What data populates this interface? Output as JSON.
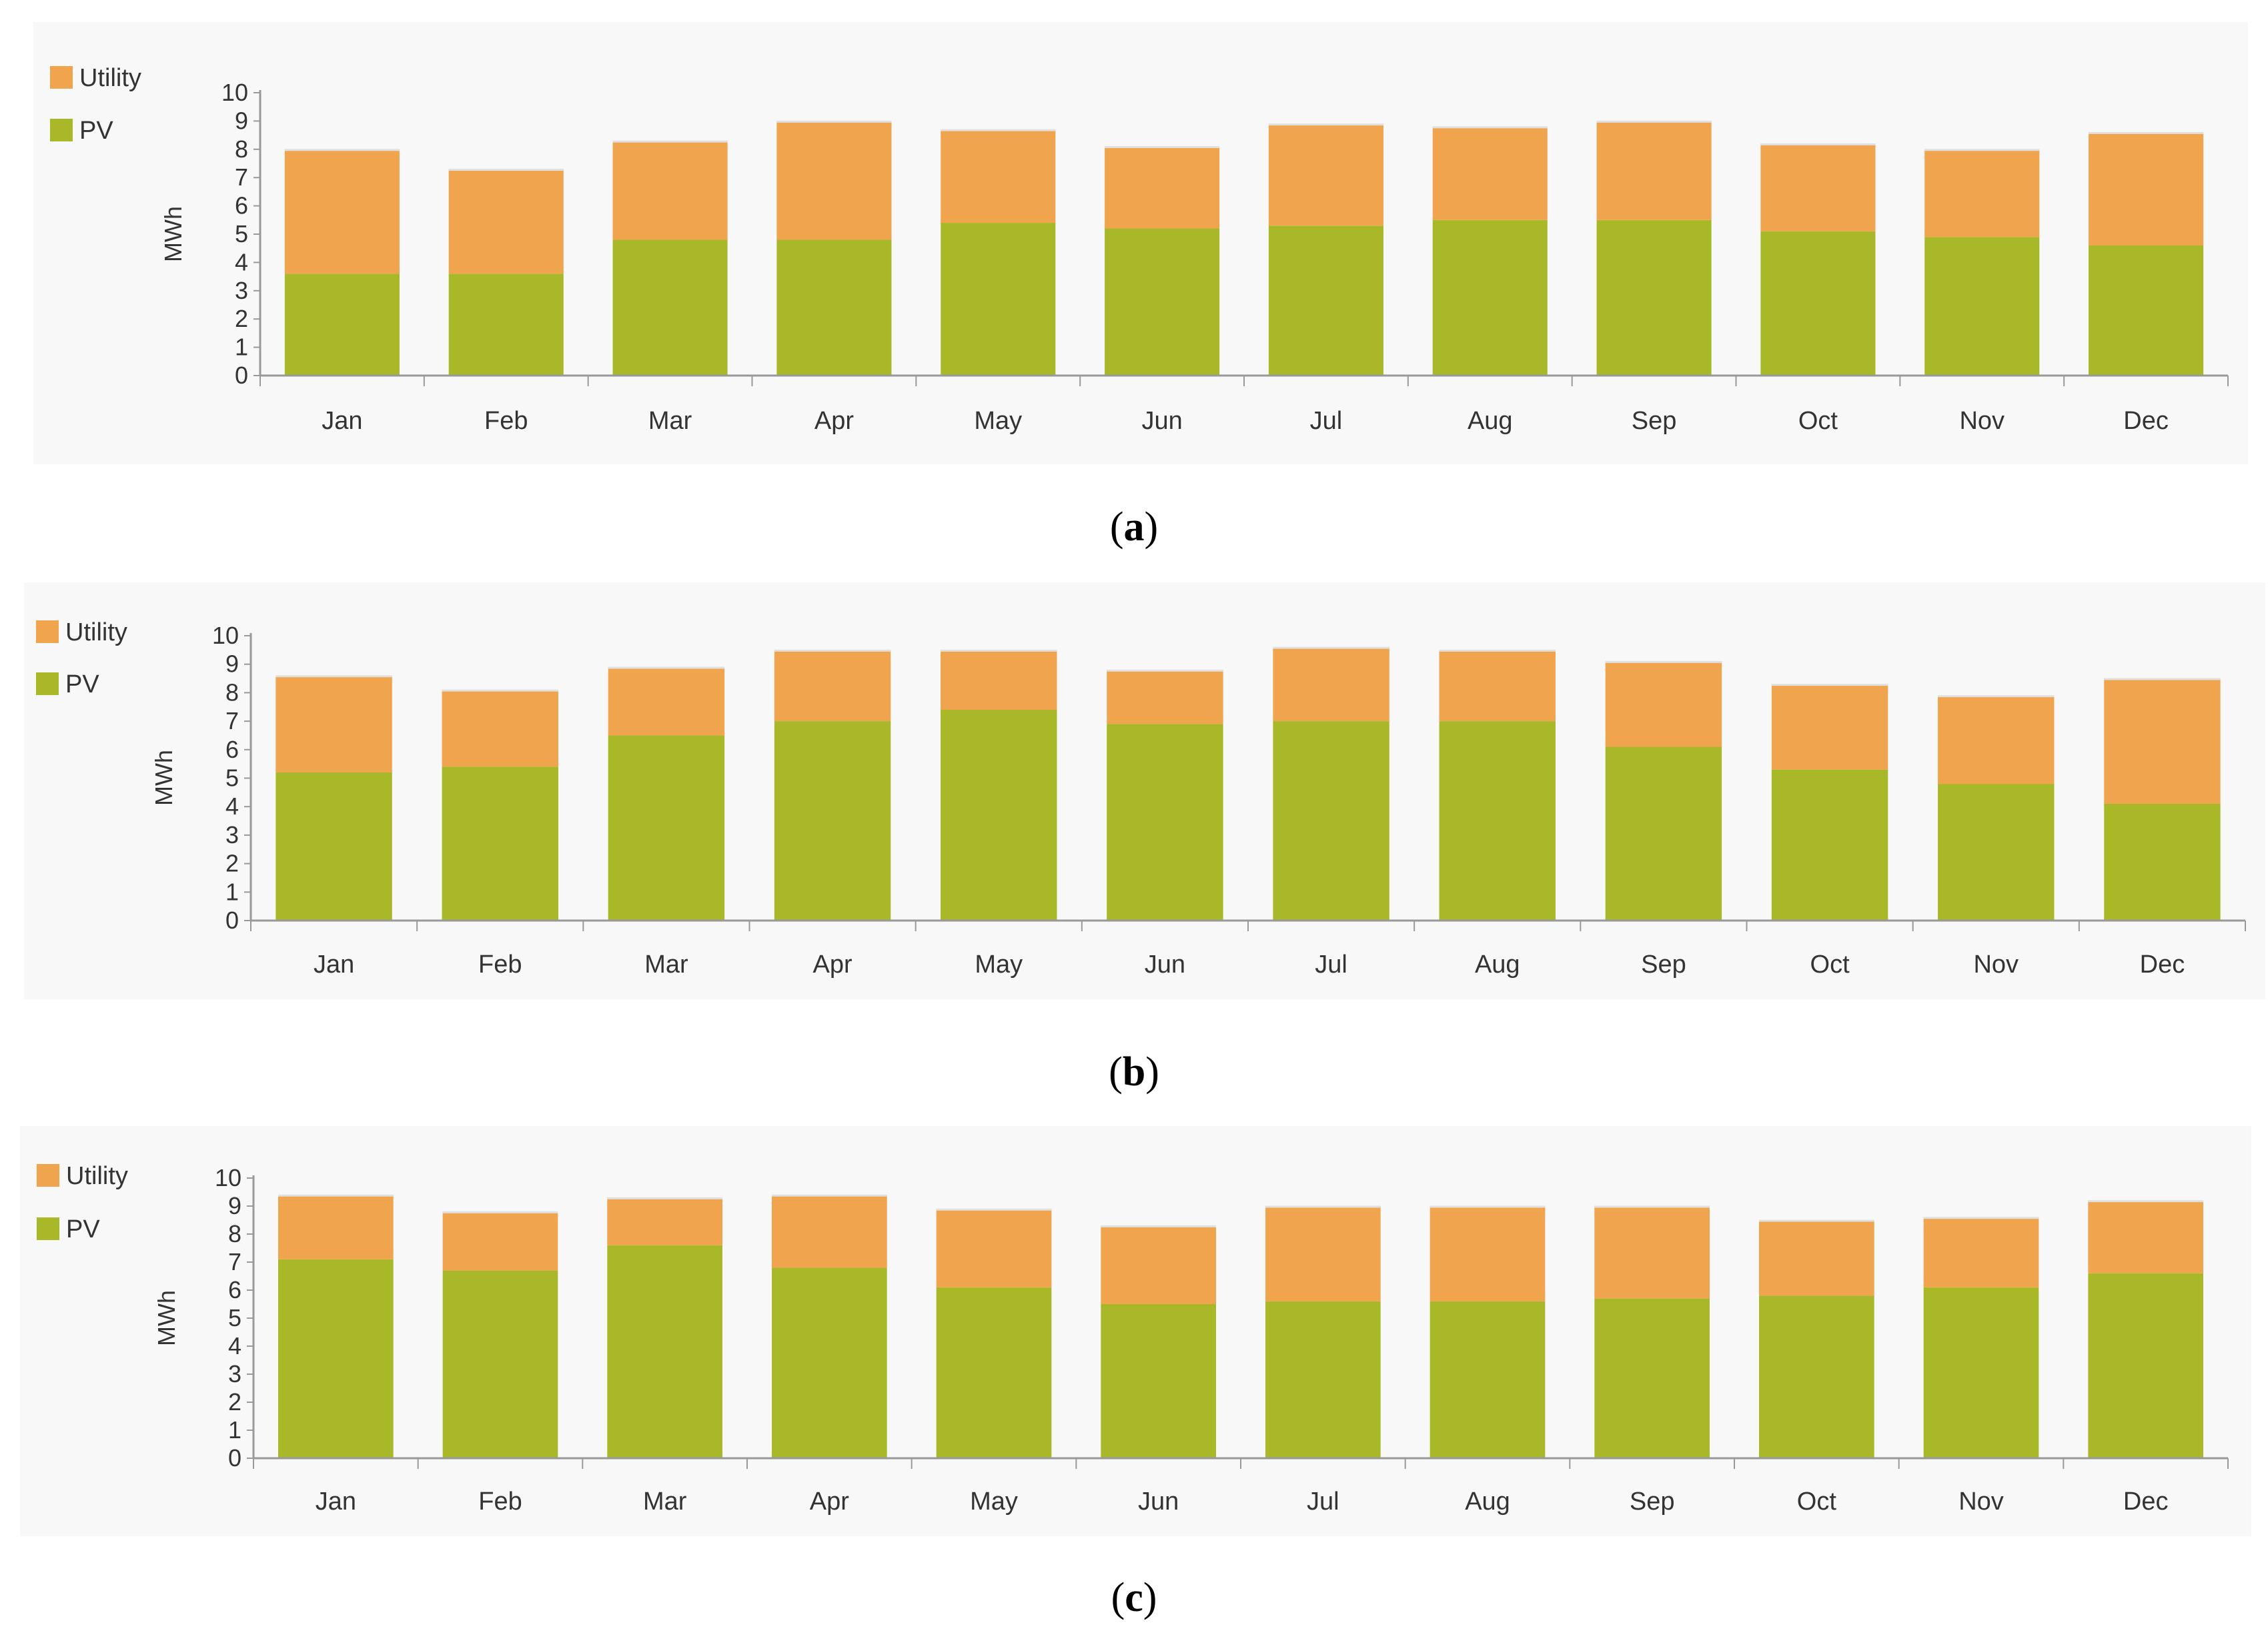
{
  "colors": {
    "utility": "#f0a44e",
    "pv": "#a9b828",
    "axis": "#999999",
    "panel": "#f8f8f8"
  },
  "chart_data": [
    {
      "type": "bar",
      "stacked": true,
      "caption": "a",
      "ylabel": "MWh",
      "ylim": [
        0,
        10
      ],
      "yticks": [
        "0",
        "1",
        "2",
        "3",
        "4",
        "5",
        "6",
        "7",
        "8",
        "9",
        "10"
      ],
      "legend": [
        "Utility",
        "PV"
      ],
      "legend_position": "top-left",
      "categories": [
        "Jan",
        "Feb",
        "Mar",
        "Apr",
        "May",
        "Jun",
        "Jul",
        "Aug",
        "Sep",
        "Oct",
        "Nov",
        "Dec"
      ],
      "series": [
        {
          "name": "PV",
          "values": [
            3.6,
            3.6,
            4.8,
            4.8,
            5.4,
            5.2,
            5.3,
            5.5,
            5.5,
            5.1,
            4.9,
            4.6
          ]
        },
        {
          "name": "Utility",
          "values": [
            4.4,
            3.7,
            3.5,
            4.2,
            3.3,
            2.9,
            3.6,
            3.3,
            3.5,
            3.1,
            3.1,
            4.0
          ]
        }
      ]
    },
    {
      "type": "bar",
      "stacked": true,
      "caption": "b",
      "ylabel": "MWh",
      "ylim": [
        0,
        10
      ],
      "yticks": [
        "0",
        "1",
        "2",
        "3",
        "4",
        "5",
        "6",
        "7",
        "8",
        "9",
        "10"
      ],
      "legend": [
        "Utility",
        "PV"
      ],
      "legend_position": "top-left",
      "categories": [
        "Jan",
        "Feb",
        "Mar",
        "Apr",
        "May",
        "Jun",
        "Jul",
        "Aug",
        "Sep",
        "Oct",
        "Nov",
        "Dec"
      ],
      "series": [
        {
          "name": "PV",
          "values": [
            5.2,
            5.4,
            6.5,
            7.0,
            7.4,
            6.9,
            7.0,
            7.0,
            6.1,
            5.3,
            4.8,
            4.1
          ]
        },
        {
          "name": "Utility",
          "values": [
            3.4,
            2.7,
            2.4,
            2.5,
            2.1,
            1.9,
            2.6,
            2.5,
            3.0,
            3.0,
            3.1,
            4.4
          ]
        }
      ]
    },
    {
      "type": "bar",
      "stacked": true,
      "caption": "c",
      "ylabel": "MWh",
      "ylim": [
        0,
        10
      ],
      "yticks": [
        "0",
        "1",
        "2",
        "3",
        "4",
        "5",
        "6",
        "7",
        "8",
        "9",
        "10"
      ],
      "legend": [
        "Utility",
        "PV"
      ],
      "legend_position": "top-left",
      "categories": [
        "Jan",
        "Feb",
        "Mar",
        "Apr",
        "May",
        "Jun",
        "Jul",
        "Aug",
        "Sep",
        "Oct",
        "Nov",
        "Dec"
      ],
      "series": [
        {
          "name": "PV",
          "values": [
            7.1,
            6.7,
            7.6,
            6.8,
            6.1,
            5.5,
            5.6,
            5.6,
            5.7,
            5.8,
            6.1,
            6.6
          ]
        },
        {
          "name": "Utility",
          "values": [
            2.3,
            2.1,
            1.7,
            2.6,
            2.8,
            2.8,
            3.4,
            3.4,
            3.3,
            2.7,
            2.5,
            2.6
          ]
        }
      ]
    }
  ]
}
